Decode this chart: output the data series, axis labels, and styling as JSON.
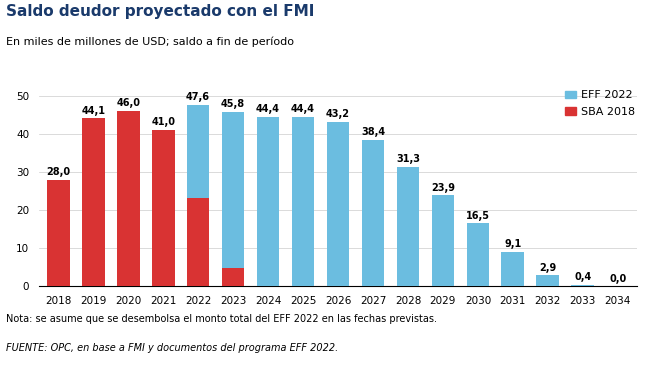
{
  "title": "Saldo deudor proyectado con el FMI",
  "subtitle": "En miles de millones de USD; saldo a fin de período",
  "note": "Nota: se asume que se desembolsa el monto total del EFF 2022 en las fechas previstas.",
  "source": "FUENTE: OPC, en base a FMI y documentos del programa EFF 2022.",
  "years": [
    2018,
    2019,
    2020,
    2021,
    2022,
    2023,
    2024,
    2025,
    2026,
    2027,
    2028,
    2029,
    2030,
    2031,
    2032,
    2033,
    2034
  ],
  "sba_values": [
    28.0,
    44.1,
    46.0,
    41.0,
    23.2,
    4.7,
    0,
    0,
    0,
    0,
    0,
    0,
    0,
    0,
    0,
    0,
    0
  ],
  "eff_values": [
    0,
    0,
    0,
    0,
    24.4,
    41.1,
    44.4,
    44.4,
    43.2,
    38.4,
    31.3,
    23.9,
    16.5,
    9.1,
    2.9,
    0.4,
    0.0
  ],
  "total_labels": [
    "28,0",
    "44,1",
    "46,0",
    "41,0",
    "47,6",
    "45,8",
    "44,4",
    "44,4",
    "43,2",
    "38,4",
    "31,3",
    "23,9",
    "16,5",
    "9,1",
    "2,9",
    "0,4",
    "0,0"
  ],
  "color_eff": "#6BBDE0",
  "color_sba": "#D93333",
  "ylim": [
    0,
    52
  ],
  "yticks": [
    0,
    10,
    20,
    30,
    40,
    50
  ],
  "legend_eff": "EFF 2022",
  "legend_sba": "SBA 2018",
  "title_fontsize": 11,
  "subtitle_fontsize": 8,
  "label_fontsize": 7,
  "tick_fontsize": 7.5,
  "note_fontsize": 7,
  "source_fontsize": 7,
  "title_color": "#1a3a6b",
  "bar_width": 0.65
}
